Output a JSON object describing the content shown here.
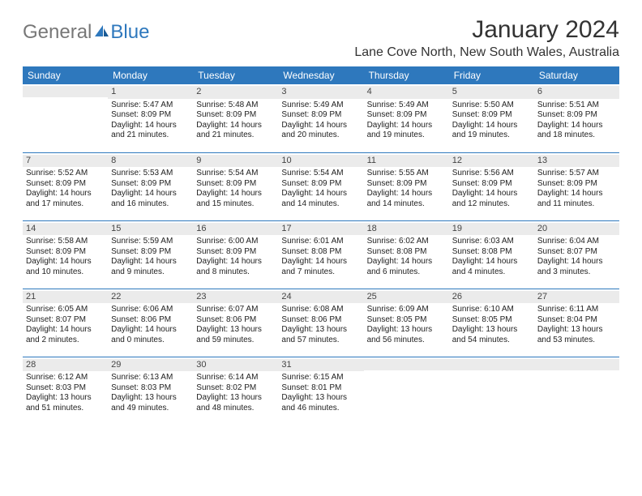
{
  "logo": {
    "text_general": "General",
    "text_blue": "Blue"
  },
  "header": {
    "month_title": "January 2024",
    "location": "Lane Cove North, New South Wales, Australia"
  },
  "colors": {
    "header_bg": "#2e78bd",
    "header_text": "#ffffff",
    "daynum_bg": "#ebebeb",
    "border": "#2e78bd",
    "body_text": "#222222"
  },
  "weekdays": [
    "Sunday",
    "Monday",
    "Tuesday",
    "Wednesday",
    "Thursday",
    "Friday",
    "Saturday"
  ],
  "weeks": [
    [
      {
        "day": "",
        "sunrise": "",
        "sunset": "",
        "daylight": ""
      },
      {
        "day": "1",
        "sunrise": "Sunrise: 5:47 AM",
        "sunset": "Sunset: 8:09 PM",
        "daylight": "Daylight: 14 hours and 21 minutes."
      },
      {
        "day": "2",
        "sunrise": "Sunrise: 5:48 AM",
        "sunset": "Sunset: 8:09 PM",
        "daylight": "Daylight: 14 hours and 21 minutes."
      },
      {
        "day": "3",
        "sunrise": "Sunrise: 5:49 AM",
        "sunset": "Sunset: 8:09 PM",
        "daylight": "Daylight: 14 hours and 20 minutes."
      },
      {
        "day": "4",
        "sunrise": "Sunrise: 5:49 AM",
        "sunset": "Sunset: 8:09 PM",
        "daylight": "Daylight: 14 hours and 19 minutes."
      },
      {
        "day": "5",
        "sunrise": "Sunrise: 5:50 AM",
        "sunset": "Sunset: 8:09 PM",
        "daylight": "Daylight: 14 hours and 19 minutes."
      },
      {
        "day": "6",
        "sunrise": "Sunrise: 5:51 AM",
        "sunset": "Sunset: 8:09 PM",
        "daylight": "Daylight: 14 hours and 18 minutes."
      }
    ],
    [
      {
        "day": "7",
        "sunrise": "Sunrise: 5:52 AM",
        "sunset": "Sunset: 8:09 PM",
        "daylight": "Daylight: 14 hours and 17 minutes."
      },
      {
        "day": "8",
        "sunrise": "Sunrise: 5:53 AM",
        "sunset": "Sunset: 8:09 PM",
        "daylight": "Daylight: 14 hours and 16 minutes."
      },
      {
        "day": "9",
        "sunrise": "Sunrise: 5:54 AM",
        "sunset": "Sunset: 8:09 PM",
        "daylight": "Daylight: 14 hours and 15 minutes."
      },
      {
        "day": "10",
        "sunrise": "Sunrise: 5:54 AM",
        "sunset": "Sunset: 8:09 PM",
        "daylight": "Daylight: 14 hours and 14 minutes."
      },
      {
        "day": "11",
        "sunrise": "Sunrise: 5:55 AM",
        "sunset": "Sunset: 8:09 PM",
        "daylight": "Daylight: 14 hours and 14 minutes."
      },
      {
        "day": "12",
        "sunrise": "Sunrise: 5:56 AM",
        "sunset": "Sunset: 8:09 PM",
        "daylight": "Daylight: 14 hours and 12 minutes."
      },
      {
        "day": "13",
        "sunrise": "Sunrise: 5:57 AM",
        "sunset": "Sunset: 8:09 PM",
        "daylight": "Daylight: 14 hours and 11 minutes."
      }
    ],
    [
      {
        "day": "14",
        "sunrise": "Sunrise: 5:58 AM",
        "sunset": "Sunset: 8:09 PM",
        "daylight": "Daylight: 14 hours and 10 minutes."
      },
      {
        "day": "15",
        "sunrise": "Sunrise: 5:59 AM",
        "sunset": "Sunset: 8:09 PM",
        "daylight": "Daylight: 14 hours and 9 minutes."
      },
      {
        "day": "16",
        "sunrise": "Sunrise: 6:00 AM",
        "sunset": "Sunset: 8:09 PM",
        "daylight": "Daylight: 14 hours and 8 minutes."
      },
      {
        "day": "17",
        "sunrise": "Sunrise: 6:01 AM",
        "sunset": "Sunset: 8:08 PM",
        "daylight": "Daylight: 14 hours and 7 minutes."
      },
      {
        "day": "18",
        "sunrise": "Sunrise: 6:02 AM",
        "sunset": "Sunset: 8:08 PM",
        "daylight": "Daylight: 14 hours and 6 minutes."
      },
      {
        "day": "19",
        "sunrise": "Sunrise: 6:03 AM",
        "sunset": "Sunset: 8:08 PM",
        "daylight": "Daylight: 14 hours and 4 minutes."
      },
      {
        "day": "20",
        "sunrise": "Sunrise: 6:04 AM",
        "sunset": "Sunset: 8:07 PM",
        "daylight": "Daylight: 14 hours and 3 minutes."
      }
    ],
    [
      {
        "day": "21",
        "sunrise": "Sunrise: 6:05 AM",
        "sunset": "Sunset: 8:07 PM",
        "daylight": "Daylight: 14 hours and 2 minutes."
      },
      {
        "day": "22",
        "sunrise": "Sunrise: 6:06 AM",
        "sunset": "Sunset: 8:06 PM",
        "daylight": "Daylight: 14 hours and 0 minutes."
      },
      {
        "day": "23",
        "sunrise": "Sunrise: 6:07 AM",
        "sunset": "Sunset: 8:06 PM",
        "daylight": "Daylight: 13 hours and 59 minutes."
      },
      {
        "day": "24",
        "sunrise": "Sunrise: 6:08 AM",
        "sunset": "Sunset: 8:06 PM",
        "daylight": "Daylight: 13 hours and 57 minutes."
      },
      {
        "day": "25",
        "sunrise": "Sunrise: 6:09 AM",
        "sunset": "Sunset: 8:05 PM",
        "daylight": "Daylight: 13 hours and 56 minutes."
      },
      {
        "day": "26",
        "sunrise": "Sunrise: 6:10 AM",
        "sunset": "Sunset: 8:05 PM",
        "daylight": "Daylight: 13 hours and 54 minutes."
      },
      {
        "day": "27",
        "sunrise": "Sunrise: 6:11 AM",
        "sunset": "Sunset: 8:04 PM",
        "daylight": "Daylight: 13 hours and 53 minutes."
      }
    ],
    [
      {
        "day": "28",
        "sunrise": "Sunrise: 6:12 AM",
        "sunset": "Sunset: 8:03 PM",
        "daylight": "Daylight: 13 hours and 51 minutes."
      },
      {
        "day": "29",
        "sunrise": "Sunrise: 6:13 AM",
        "sunset": "Sunset: 8:03 PM",
        "daylight": "Daylight: 13 hours and 49 minutes."
      },
      {
        "day": "30",
        "sunrise": "Sunrise: 6:14 AM",
        "sunset": "Sunset: 8:02 PM",
        "daylight": "Daylight: 13 hours and 48 minutes."
      },
      {
        "day": "31",
        "sunrise": "Sunrise: 6:15 AM",
        "sunset": "Sunset: 8:01 PM",
        "daylight": "Daylight: 13 hours and 46 minutes."
      },
      {
        "day": "",
        "sunrise": "",
        "sunset": "",
        "daylight": ""
      },
      {
        "day": "",
        "sunrise": "",
        "sunset": "",
        "daylight": ""
      },
      {
        "day": "",
        "sunrise": "",
        "sunset": "",
        "daylight": ""
      }
    ]
  ]
}
